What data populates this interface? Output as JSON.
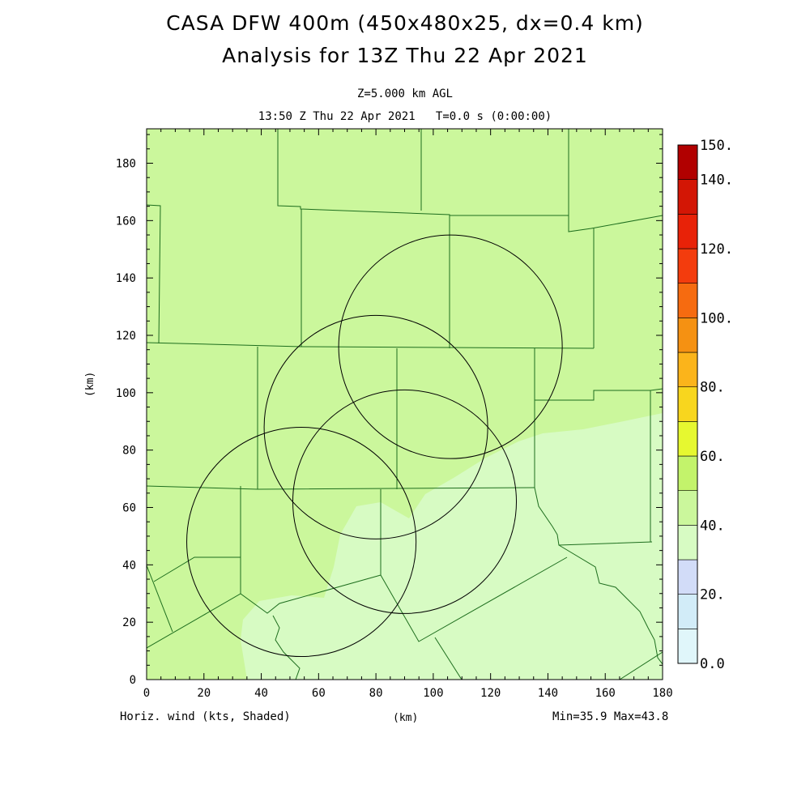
{
  "header": {
    "title_line1": "CASA DFW 400m (450x480x25, dx=0.4 km)",
    "title_line2": "Analysis for 13Z Thu 22 Apr 2021",
    "level": "Z=5.000 km AGL",
    "time": "13:50 Z Thu 22 Apr 2021   T=0.0 s (0:00:00)"
  },
  "axes": {
    "x_label": "(km)",
    "y_label": "(km)",
    "x_ticks": [
      "0",
      "20",
      "40",
      "60",
      "80",
      "100",
      "120",
      "140",
      "160",
      "180"
    ],
    "y_ticks": [
      "0",
      "20",
      "40",
      "60",
      "80",
      "100",
      "120",
      "140",
      "160",
      "180"
    ],
    "x_range": [
      0,
      180
    ],
    "y_range": [
      0,
      192
    ]
  },
  "footer": {
    "left": "Horiz. wind (kts, Shaded)",
    "center": "(km)",
    "right": "Min=35.9 Max=43.8"
  },
  "colorbar": {
    "labels": [
      "150.",
      "140.",
      "120.",
      "100.",
      "80.",
      "60.",
      "40.",
      "20.",
      "0.0"
    ],
    "colors": [
      "#e0f6fa",
      "#d2ecf8",
      "#d2dcf8",
      "#d7fbc3",
      "#cbf79c",
      "#c3f36b",
      "#e6f830",
      "#f8d61e",
      "#fbb41b",
      "#f59112",
      "#f66b10",
      "#f33c0d",
      "#e82208",
      "#d31605",
      "#b10000"
    ]
  },
  "map": {
    "fill_colors": {
      "light": "#d7fbc3",
      "medium": "#cbf79c"
    },
    "radar_circles_km": [
      {
        "cx": 106,
        "cy": 116,
        "r": 39
      },
      {
        "cx": 80,
        "cy": 88,
        "r": 39
      },
      {
        "cx": 90,
        "cy": 62,
        "r": 39
      },
      {
        "cx": 54,
        "cy": 48,
        "r": 40
      }
    ]
  }
}
